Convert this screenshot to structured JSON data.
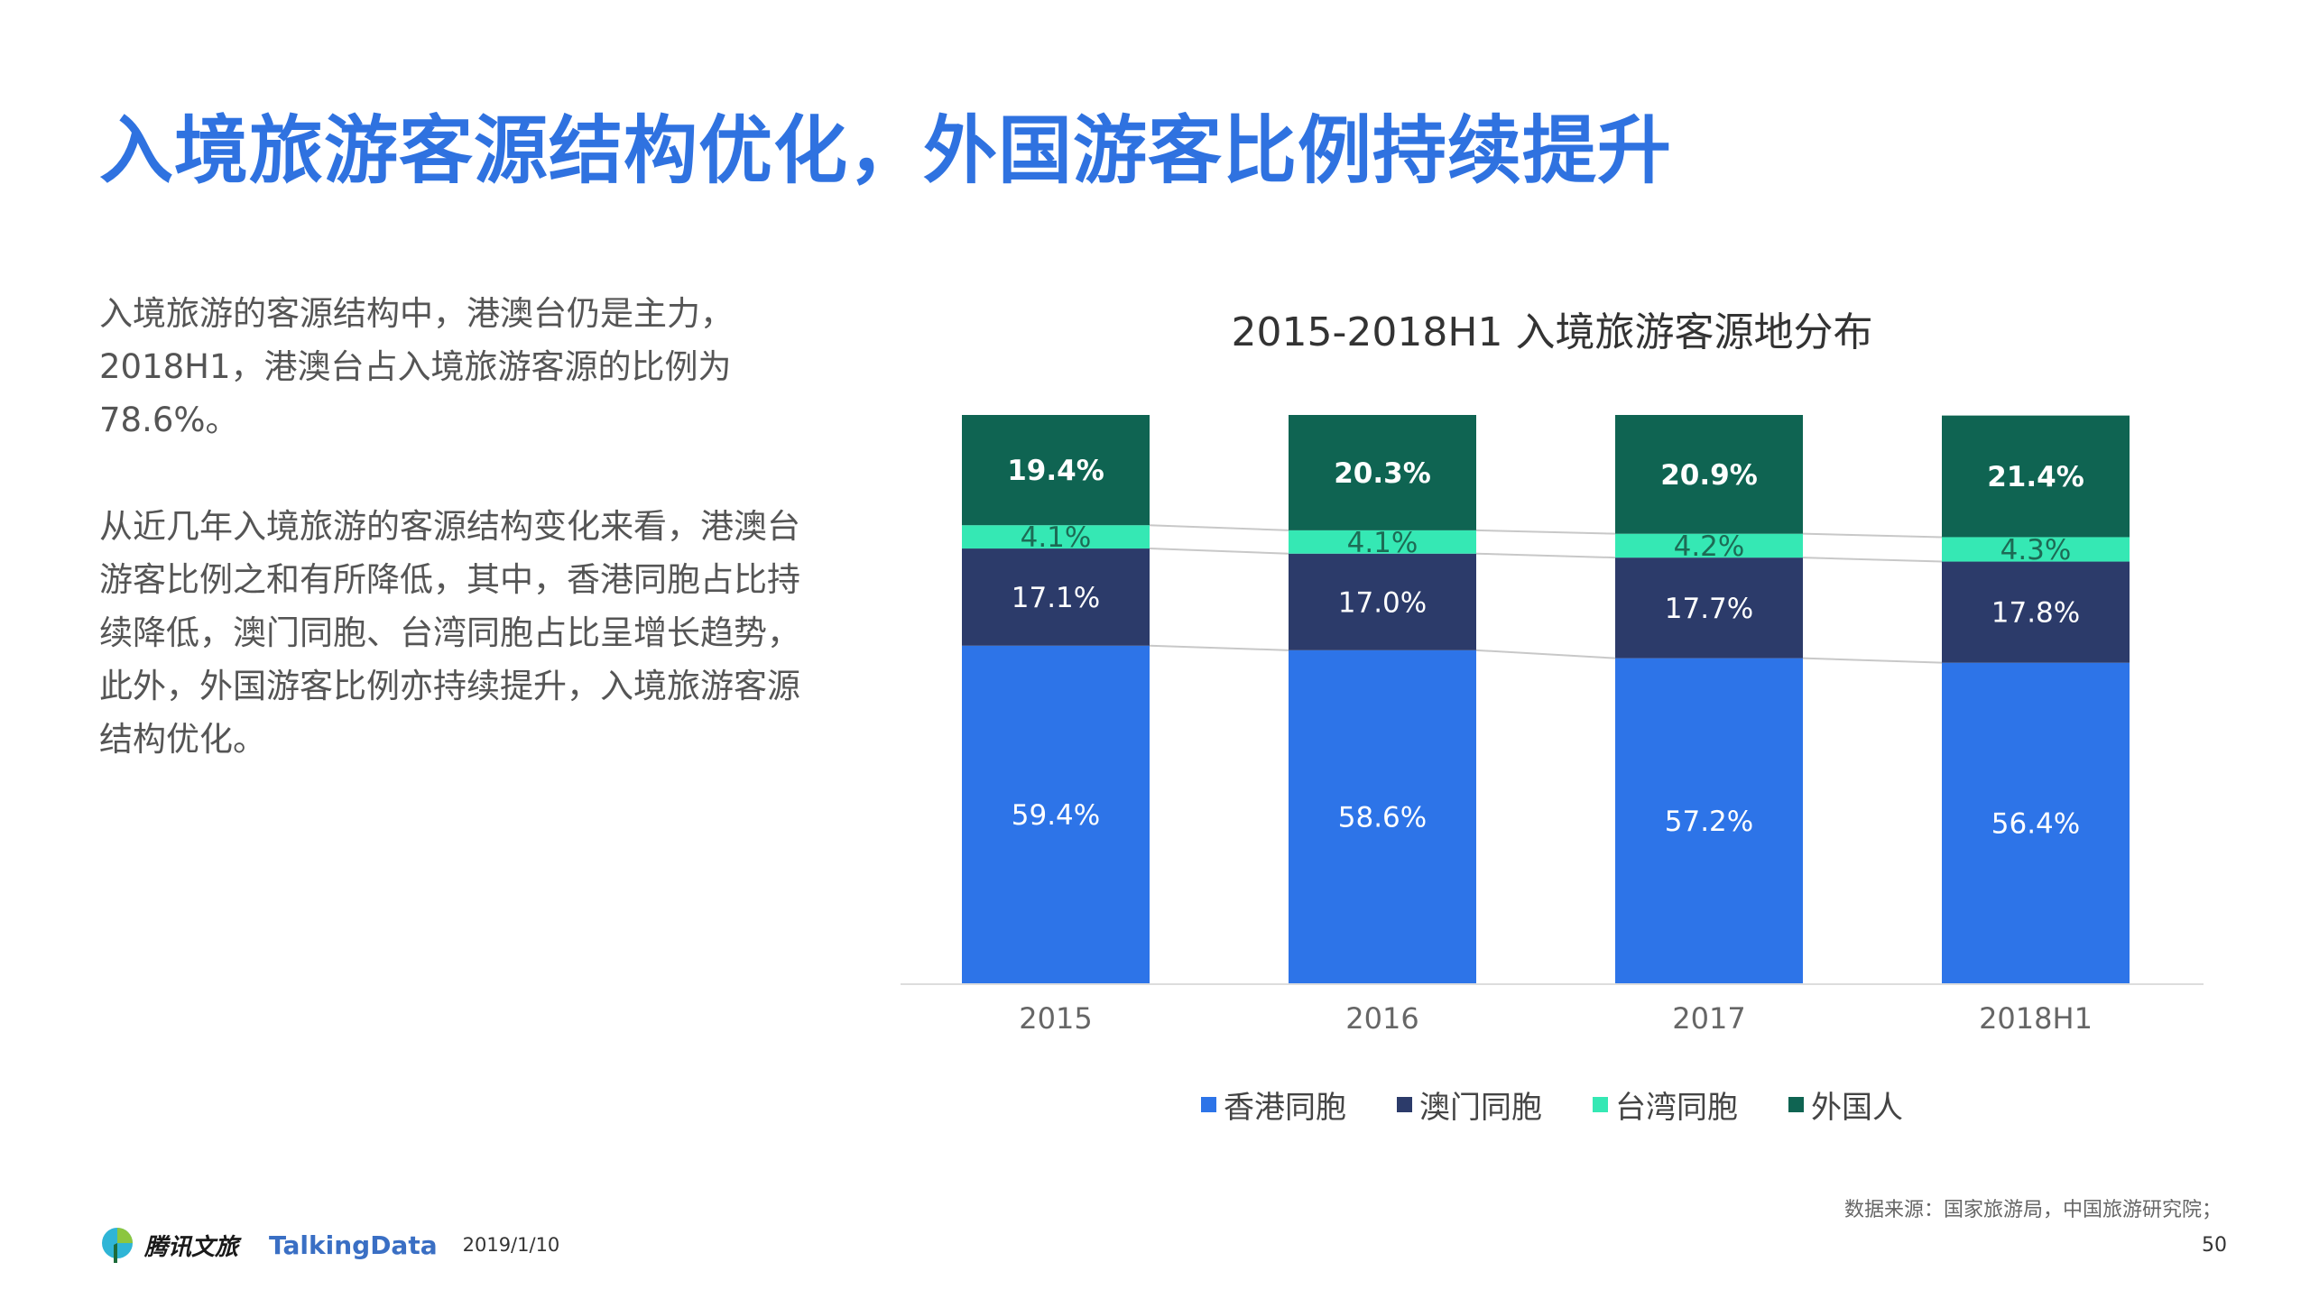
{
  "slide": {
    "title": "入境旅游客源结构优化，外国游客比例持续提升",
    "paragraphs": [
      "入境旅游的客源结构中，港澳台仍是主力，2018H1，港澳台占入境旅游客源的比例为78.6%。",
      "从近几年入境旅游的客源结构变化来看，港澳台游客比例之和有所降低，其中，香港同胞占比持续降低，澳门同胞、台湾同胞占比呈增长趋势，此外，外国游客比例亦持续提升，入境旅游客源结构优化。"
    ],
    "source": "数据来源：国家旅游局，中国旅游研究院；",
    "page_number": "50",
    "date": "2019/1/10",
    "logos": {
      "tencent": "腾讯文旅",
      "talkingdata": "TalkingData"
    }
  },
  "chart_data": {
    "type": "bar",
    "stacked": true,
    "title": "2015-2018H1 入境旅游客源地分布",
    "categories": [
      "2015",
      "2016",
      "2017",
      "2018H1"
    ],
    "series": [
      {
        "name": "香港同胞",
        "color": "#2d74e8",
        "values": [
          59.4,
          58.6,
          57.2,
          56.4
        ],
        "labels": [
          "59.4%",
          "58.6%",
          "57.2%",
          "56.4%"
        ]
      },
      {
        "name": "澳门同胞",
        "color": "#2c3b6a",
        "values": [
          17.1,
          17.0,
          17.7,
          17.8
        ],
        "labels": [
          "17.1%",
          "17.0%",
          "17.7%",
          "17.8%"
        ]
      },
      {
        "name": "台湾同胞",
        "color": "#35e8b4",
        "values": [
          4.1,
          4.1,
          4.2,
          4.3
        ],
        "labels": [
          "4.1%",
          "4.1%",
          "4.2%",
          "4.3%"
        ]
      },
      {
        "name": "外国人",
        "color": "#0f6452",
        "values": [
          19.4,
          20.3,
          20.9,
          21.4
        ],
        "labels": [
          "19.4%",
          "20.3%",
          "20.9%",
          "21.4%"
        ]
      }
    ],
    "ylim": [
      0,
      100
    ],
    "grid": false,
    "legend_position": "bottom",
    "series_connector_lines": true
  }
}
